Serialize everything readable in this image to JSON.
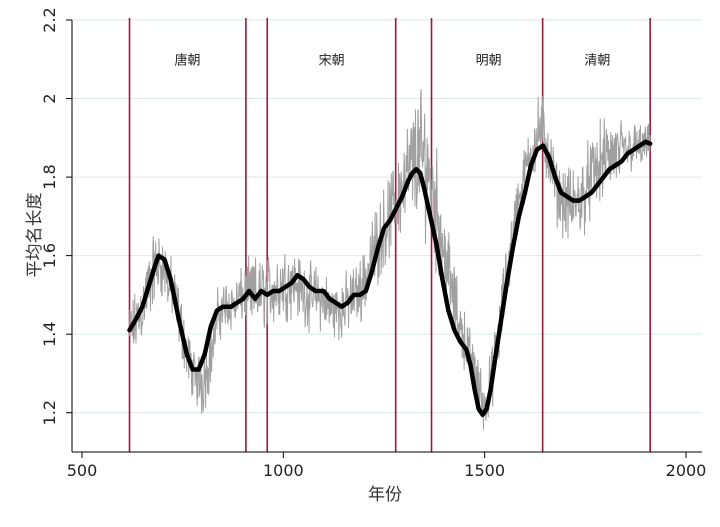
{
  "chart_data": {
    "type": "line",
    "title": "",
    "xlabel": "年份",
    "ylabel": "平均名长度",
    "xlim": [
      500,
      2000
    ],
    "ylim": [
      1.1,
      2.2
    ],
    "x_ticks": [
      500,
      1000,
      1500,
      2000
    ],
    "y_ticks": [
      1.2,
      1.4,
      1.6,
      1.8,
      2.0,
      2.2
    ],
    "x_tick_labels": [
      "500",
      "1000",
      "1500",
      "2000"
    ],
    "y_tick_labels": [
      "1.2",
      "1.4",
      "1.6",
      "1.8",
      "2",
      "2.2"
    ],
    "grid": "horizontal",
    "legend": "none",
    "colors": {
      "raw": "#a0a0a0",
      "smooth": "#000000",
      "divider": "#a3143b",
      "grid": "#dbe9ea",
      "axis": "#000000"
    },
    "dynasty_boundaries": [
      618,
      907,
      960,
      1279,
      1368,
      1644,
      1911
    ],
    "dynasty_labels": [
      {
        "name": "唐朝",
        "x": 762,
        "y": 2.1
      },
      {
        "name": "宋朝",
        "x": 1120,
        "y": 2.1
      },
      {
        "name": "明朝",
        "x": 1510,
        "y": 2.1
      },
      {
        "name": "清朝",
        "x": 1780,
        "y": 2.1
      }
    ],
    "series": [
      {
        "style": "raw-annual",
        "x_range": [
          618,
          1911
        ],
        "envelope": [
          [
            618,
            1.3,
            1.5
          ],
          [
            640,
            1.33,
            1.55
          ],
          [
            660,
            1.38,
            1.62
          ],
          [
            680,
            1.45,
            1.69
          ],
          [
            700,
            1.47,
            1.68
          ],
          [
            720,
            1.42,
            1.62
          ],
          [
            740,
            1.35,
            1.55
          ],
          [
            760,
            1.26,
            1.45
          ],
          [
            780,
            1.2,
            1.37
          ],
          [
            800,
            1.16,
            1.4
          ],
          [
            820,
            1.25,
            1.45
          ],
          [
            840,
            1.36,
            1.55
          ],
          [
            860,
            1.39,
            1.56
          ],
          [
            880,
            1.39,
            1.56
          ],
          [
            900,
            1.41,
            1.59
          ],
          [
            920,
            1.38,
            1.62
          ],
          [
            940,
            1.38,
            1.62
          ],
          [
            960,
            1.39,
            1.63
          ],
          [
            980,
            1.4,
            1.63
          ],
          [
            1000,
            1.41,
            1.65
          ],
          [
            1020,
            1.42,
            1.66
          ],
          [
            1040,
            1.42,
            1.62
          ],
          [
            1060,
            1.39,
            1.6
          ],
          [
            1080,
            1.4,
            1.6
          ],
          [
            1100,
            1.38,
            1.58
          ],
          [
            1120,
            1.37,
            1.56
          ],
          [
            1140,
            1.36,
            1.56
          ],
          [
            1160,
            1.38,
            1.58
          ],
          [
            1180,
            1.4,
            1.6
          ],
          [
            1200,
            1.42,
            1.64
          ],
          [
            1220,
            1.46,
            1.72
          ],
          [
            1240,
            1.52,
            1.78
          ],
          [
            1260,
            1.56,
            1.82
          ],
          [
            1280,
            1.6,
            1.88
          ],
          [
            1300,
            1.62,
            1.95
          ],
          [
            1320,
            1.65,
            2.02
          ],
          [
            1340,
            1.64,
            2.08
          ],
          [
            1360,
            1.6,
            2.04
          ],
          [
            1380,
            1.52,
            1.92
          ],
          [
            1400,
            1.44,
            1.78
          ],
          [
            1420,
            1.38,
            1.62
          ],
          [
            1440,
            1.32,
            1.52
          ],
          [
            1460,
            1.26,
            1.45
          ],
          [
            1480,
            1.2,
            1.38
          ],
          [
            1500,
            1.12,
            1.3
          ],
          [
            1520,
            1.2,
            1.4
          ],
          [
            1540,
            1.32,
            1.55
          ],
          [
            1560,
            1.48,
            1.7
          ],
          [
            1580,
            1.62,
            1.82
          ],
          [
            1600,
            1.72,
            1.9
          ],
          [
            1620,
            1.78,
            1.98
          ],
          [
            1640,
            1.79,
            2.06
          ],
          [
            1660,
            1.75,
            1.95
          ],
          [
            1680,
            1.66,
            1.86
          ],
          [
            1700,
            1.62,
            1.84
          ],
          [
            1720,
            1.58,
            1.86
          ],
          [
            1740,
            1.62,
            1.88
          ],
          [
            1760,
            1.66,
            1.92
          ],
          [
            1780,
            1.7,
            1.95
          ],
          [
            1800,
            1.72,
            1.98
          ],
          [
            1820,
            1.73,
            1.98
          ],
          [
            1840,
            1.76,
            1.97
          ],
          [
            1860,
            1.79,
            1.96
          ],
          [
            1880,
            1.8,
            1.95
          ],
          [
            1900,
            1.81,
            1.95
          ],
          [
            1911,
            1.82,
            1.94
          ]
        ]
      },
      {
        "style": "smoothed",
        "points": [
          [
            618,
            1.41
          ],
          [
            635,
            1.44
          ],
          [
            650,
            1.47
          ],
          [
            665,
            1.52
          ],
          [
            680,
            1.57
          ],
          [
            690,
            1.6
          ],
          [
            705,
            1.59
          ],
          [
            720,
            1.54
          ],
          [
            740,
            1.44
          ],
          [
            760,
            1.35
          ],
          [
            775,
            1.31
          ],
          [
            790,
            1.31
          ],
          [
            805,
            1.35
          ],
          [
            820,
            1.42
          ],
          [
            835,
            1.46
          ],
          [
            850,
            1.47
          ],
          [
            870,
            1.47
          ],
          [
            885,
            1.48
          ],
          [
            900,
            1.49
          ],
          [
            915,
            1.51
          ],
          [
            930,
            1.49
          ],
          [
            945,
            1.51
          ],
          [
            960,
            1.5
          ],
          [
            975,
            1.51
          ],
          [
            990,
            1.51
          ],
          [
            1005,
            1.52
          ],
          [
            1020,
            1.53
          ],
          [
            1035,
            1.55
          ],
          [
            1050,
            1.54
          ],
          [
            1065,
            1.52
          ],
          [
            1080,
            1.51
          ],
          [
            1100,
            1.51
          ],
          [
            1115,
            1.49
          ],
          [
            1130,
            1.48
          ],
          [
            1145,
            1.47
          ],
          [
            1160,
            1.48
          ],
          [
            1175,
            1.5
          ],
          [
            1190,
            1.5
          ],
          [
            1205,
            1.51
          ],
          [
            1220,
            1.56
          ],
          [
            1235,
            1.62
          ],
          [
            1250,
            1.67
          ],
          [
            1265,
            1.69
          ],
          [
            1280,
            1.72
          ],
          [
            1295,
            1.75
          ],
          [
            1310,
            1.79
          ],
          [
            1320,
            1.81
          ],
          [
            1330,
            1.82
          ],
          [
            1340,
            1.81
          ],
          [
            1350,
            1.77
          ],
          [
            1365,
            1.7
          ],
          [
            1380,
            1.63
          ],
          [
            1395,
            1.54
          ],
          [
            1410,
            1.46
          ],
          [
            1425,
            1.41
          ],
          [
            1440,
            1.38
          ],
          [
            1455,
            1.36
          ],
          [
            1465,
            1.32
          ],
          [
            1475,
            1.26
          ],
          [
            1485,
            1.21
          ],
          [
            1495,
            1.195
          ],
          [
            1505,
            1.21
          ],
          [
            1515,
            1.26
          ],
          [
            1525,
            1.33
          ],
          [
            1540,
            1.43
          ],
          [
            1555,
            1.53
          ],
          [
            1570,
            1.62
          ],
          [
            1585,
            1.7
          ],
          [
            1600,
            1.76
          ],
          [
            1615,
            1.83
          ],
          [
            1630,
            1.87
          ],
          [
            1645,
            1.88
          ],
          [
            1660,
            1.85
          ],
          [
            1675,
            1.8
          ],
          [
            1690,
            1.76
          ],
          [
            1705,
            1.75
          ],
          [
            1720,
            1.74
          ],
          [
            1735,
            1.74
          ],
          [
            1750,
            1.75
          ],
          [
            1765,
            1.76
          ],
          [
            1780,
            1.78
          ],
          [
            1795,
            1.8
          ],
          [
            1810,
            1.82
          ],
          [
            1825,
            1.83
          ],
          [
            1840,
            1.84
          ],
          [
            1855,
            1.86
          ],
          [
            1870,
            1.87
          ],
          [
            1885,
            1.88
          ],
          [
            1900,
            1.89
          ],
          [
            1911,
            1.885
          ]
        ]
      }
    ]
  }
}
